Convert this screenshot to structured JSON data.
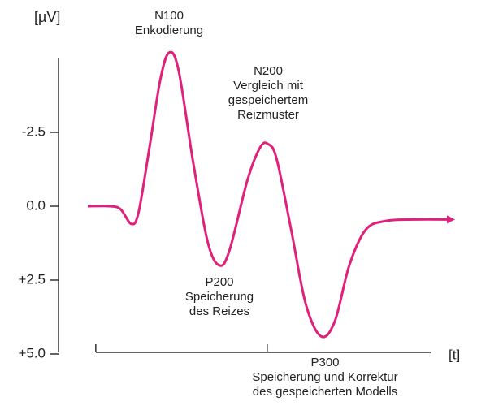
{
  "chart_data": {
    "type": "line",
    "ylabel": "[µV]",
    "xlabel": "[t]",
    "x": [
      0,
      6,
      9,
      12,
      14,
      17,
      20,
      22.4,
      25,
      29,
      33,
      36.2,
      39,
      44,
      47.5,
      49.7,
      52,
      56,
      60,
      64.2,
      68,
      72,
      76.5,
      82,
      90,
      100
    ],
    "series": [
      {
        "color": "#e0207a",
        "values": [
          0,
          0,
          0.1,
          0.6,
          0.2,
          -2.0,
          -4.3,
          -5.2,
          -4.6,
          -1.5,
          1.2,
          2.0,
          1.5,
          -0.9,
          -2.0,
          -2.1,
          -1.6,
          0.8,
          3.3,
          4.4,
          3.9,
          2.0,
          0.8,
          0.5,
          0.45,
          0.45
        ]
      }
    ],
    "xlim": [
      0,
      100
    ],
    "xticks": [
      2.2,
      49.4
    ],
    "ylim": [
      -5,
      5
    ],
    "y_inverted": true,
    "yticks": [
      -2.5,
      {
        "value": 0,
        "label": "0.0"
      },
      {
        "value": 2.5,
        "label": "+2.5"
      },
      {
        "value": 5,
        "label": "+5.0"
      }
    ],
    "annotations": [
      {
        "lines": [
          "N100",
          "Enkodierung"
        ]
      },
      {
        "lines": [
          "N200",
          "Vergleich mit",
          "gespeichertem",
          "Reizmuster"
        ]
      },
      {
        "lines": [
          "P200",
          "Speicherung",
          "des Reizes"
        ]
      },
      {
        "lines": [
          "P300",
          "Speicherung und Korrektur",
          "des gespeicherten Modells"
        ]
      }
    ]
  }
}
